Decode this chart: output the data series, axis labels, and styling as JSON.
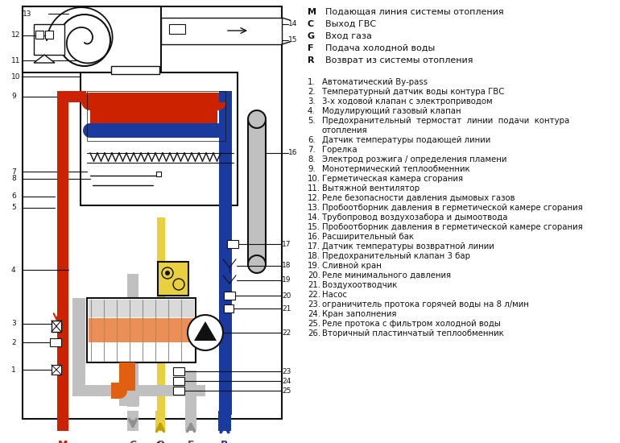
{
  "bg_color": "#ffffff",
  "legend_items": [
    [
      "M",
      "Подающая линия системы отопления"
    ],
    [
      "C",
      "Выход ГВС"
    ],
    [
      "G",
      "Вход газа"
    ],
    [
      "F",
      "Подача холодной воды"
    ],
    [
      "R",
      "Возврат из системы отопления"
    ]
  ],
  "numbered_items": [
    [
      1,
      "Автоматический By-pass"
    ],
    [
      2,
      "Температурный датчик воды контура ГВС"
    ],
    [
      3,
      "3-х ходовой клапан с электроприводом"
    ],
    [
      4,
      "Модулирующий газовый клапан"
    ],
    [
      5,
      "Предохранительный  термостат  линии  подачи  контура\nотопления"
    ],
    [
      6,
      "Датчик температуры подающей линии"
    ],
    [
      7,
      "Горелка"
    ],
    [
      8,
      "Электрод розжига / определения пламени"
    ],
    [
      9,
      "Монотермический теплообменник"
    ],
    [
      10,
      "Герметическая камера сгорания"
    ],
    [
      11,
      "Вытяжной вентилятор"
    ],
    [
      12,
      "Реле безопасности давления дымовых газов"
    ],
    [
      13,
      "Пробоотборник давления в герметической камере сгорания"
    ],
    [
      14,
      "Трубопровод воздухозабора и дымоотвода"
    ],
    [
      15,
      "Пробоотборник давления в герметической камере сгорания"
    ],
    [
      16,
      "Расширительный бак"
    ],
    [
      17,
      "Датчик температуры возвратной линии"
    ],
    [
      18,
      "Предохранительный клапан 3 бар"
    ],
    [
      19,
      "Сливной кран"
    ],
    [
      20,
      "Реле минимального давления"
    ],
    [
      21,
      "Воздухоотводчик"
    ],
    [
      22,
      "Насос"
    ],
    [
      23,
      "ограничитель протока горячей воды на 8 л/мин"
    ],
    [
      24,
      "Кран заполнения"
    ],
    [
      25,
      "Реле протока с фильтром холодной воды"
    ],
    [
      26,
      "Вторичный пластинчатый теплообменник"
    ]
  ],
  "colors": {
    "red": "#cc2200",
    "blue": "#1a3a9f",
    "blue_dark": "#0a2070",
    "orange": "#e06010",
    "yellow": "#e8d040",
    "gray_light": "#c0c0c0",
    "gray_med": "#909090",
    "gray_dark": "#505050",
    "black": "#111111",
    "white": "#ffffff",
    "cream": "#f0e8b0"
  }
}
